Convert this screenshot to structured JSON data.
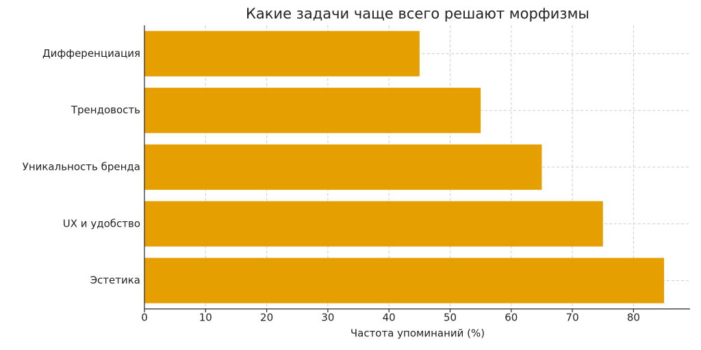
{
  "chart_data": {
    "type": "barh",
    "title": "Какие задачи чаще всего решают морфизмы",
    "x_label": "Частота упоминаний (%)",
    "categories": [
      "Дифференциация",
      "Трендовость",
      "Уникальность бренда",
      "UX и удобство",
      "Эстетика"
    ],
    "values": [
      45,
      55,
      65,
      75,
      85
    ],
    "color": "#e69f00",
    "xlim": [
      0,
      89.25
    ],
    "xticks": [
      0,
      10,
      20,
      30,
      40,
      50,
      60,
      70,
      80
    ],
    "grid": true
  }
}
